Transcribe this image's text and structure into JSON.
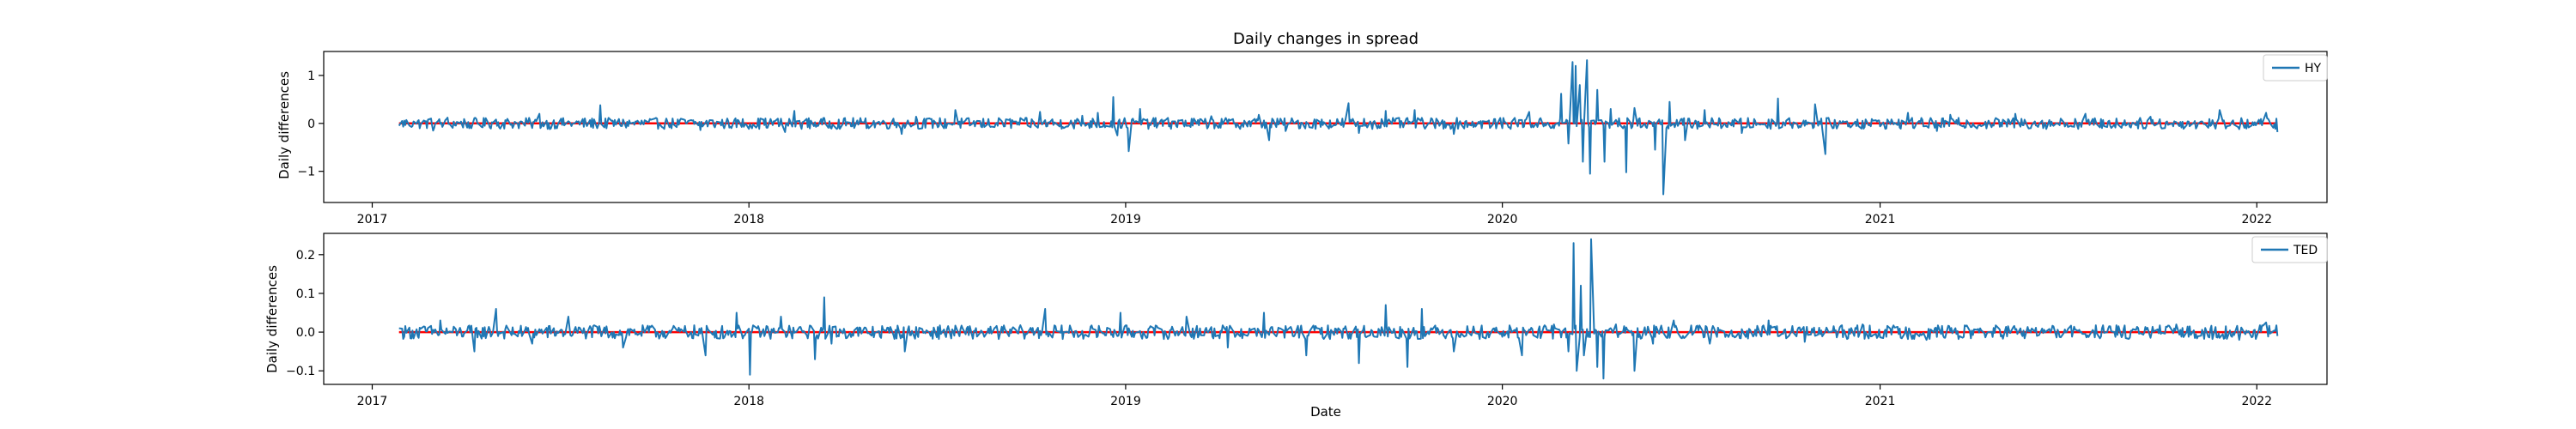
{
  "figure": {
    "title": "Daily changes in spread"
  },
  "chart_data": [
    {
      "type": "line",
      "ylabel": "Daily differences",
      "xlabel": "",
      "x_range": [
        "2016-11-15",
        "2022-03-10"
      ],
      "ylim": [
        -1.65,
        1.5
      ],
      "x_ticks": [
        "2017",
        "2018",
        "2019",
        "2020",
        "2021",
        "2022"
      ],
      "y_ticks": [
        -1,
        0,
        1
      ],
      "legend_position": "top-right",
      "grid": false,
      "series": [
        {
          "name": "HY",
          "color": "#1f77b4",
          "points": [
            [
              "2017-01-27",
              -0.05
            ],
            [
              "2017-02-10",
              0.04
            ],
            [
              "2017-03-01",
              -0.15
            ],
            [
              "2017-03-15",
              0.12
            ],
            [
              "2017-04-05",
              -0.1
            ],
            [
              "2017-05-01",
              0.08
            ],
            [
              "2017-06-12",
              0.2
            ],
            [
              "2017-06-22",
              -0.12
            ],
            [
              "2017-08-10",
              0.38
            ],
            [
              "2017-08-20",
              -0.18
            ],
            [
              "2017-10-01",
              0.06
            ],
            [
              "2017-11-15",
              -0.14
            ],
            [
              "2018-01-15",
              0.08
            ],
            [
              "2018-02-05",
              -0.18
            ],
            [
              "2018-02-14",
              0.26
            ],
            [
              "2018-03-25",
              -0.16
            ],
            [
              "2018-05-29",
              -0.22
            ],
            [
              "2018-06-12",
              0.14
            ],
            [
              "2018-07-20",
              0.28
            ],
            [
              "2018-08-15",
              -0.08
            ],
            [
              "2018-10-10",
              0.24
            ],
            [
              "2018-11-20",
              0.16
            ],
            [
              "2018-12-05",
              0.22
            ],
            [
              "2018-12-20",
              0.55
            ],
            [
              "2018-12-24",
              -0.25
            ],
            [
              "2019-01-04",
              -0.58
            ],
            [
              "2019-01-15",
              0.3
            ],
            [
              "2019-02-10",
              0.08
            ],
            [
              "2019-03-25",
              0.15
            ],
            [
              "2019-05-10",
              0.18
            ],
            [
              "2019-05-20",
              -0.35
            ],
            [
              "2019-06-05",
              -0.16
            ],
            [
              "2019-08-05",
              0.42
            ],
            [
              "2019-08-15",
              -0.2
            ],
            [
              "2019-09-10",
              0.26
            ],
            [
              "2019-10-08",
              0.28
            ],
            [
              "2019-11-15",
              -0.22
            ],
            [
              "2019-12-15",
              0.18
            ],
            [
              "2020-01-27",
              0.24
            ],
            [
              "2020-02-20",
              -0.1
            ],
            [
              "2020-02-27",
              0.62
            ],
            [
              "2020-03-05",
              -0.42
            ],
            [
              "2020-03-09",
              1.28
            ],
            [
              "2020-03-12",
              1.2
            ],
            [
              "2020-03-16",
              0.8
            ],
            [
              "2020-03-19",
              -0.8
            ],
            [
              "2020-03-23",
              1.32
            ],
            [
              "2020-03-26",
              -1.05
            ],
            [
              "2020-04-02",
              0.7
            ],
            [
              "2020-04-09",
              -0.8
            ],
            [
              "2020-04-15",
              0.3
            ],
            [
              "2020-04-30",
              -1.02
            ],
            [
              "2020-05-08",
              0.32
            ],
            [
              "2020-05-28",
              -0.55
            ],
            [
              "2020-06-05",
              -1.48
            ],
            [
              "2020-06-11",
              0.45
            ],
            [
              "2020-06-26",
              -0.35
            ],
            [
              "2020-07-15",
              0.28
            ],
            [
              "2020-08-20",
              -0.2
            ],
            [
              "2020-09-24",
              0.52
            ],
            [
              "2020-10-10",
              -0.18
            ],
            [
              "2020-10-30",
              0.4
            ],
            [
              "2020-11-09",
              -0.64
            ],
            [
              "2020-12-10",
              0.08
            ],
            [
              "2021-01-28",
              0.22
            ],
            [
              "2021-02-25",
              -0.16
            ],
            [
              "2021-03-10",
              0.18
            ],
            [
              "2021-05-12",
              0.2
            ],
            [
              "2021-07-19",
              0.2
            ],
            [
              "2021-09-20",
              0.14
            ],
            [
              "2021-10-12",
              -0.06
            ],
            [
              "2021-11-26",
              0.28
            ],
            [
              "2021-12-15",
              -0.12
            ],
            [
              "2022-01-10",
              0.22
            ],
            [
              "2022-01-21",
              -0.18
            ]
          ]
        }
      ],
      "reference_lines": [
        {
          "y": 0,
          "color": "#ff0000",
          "from": "2017-01-27",
          "to": "2022-01-21"
        }
      ]
    },
    {
      "type": "line",
      "ylabel": "Daily differences",
      "xlabel": "Date",
      "x_range": [
        "2016-11-15",
        "2022-03-10"
      ],
      "ylim": [
        -0.135,
        0.255
      ],
      "x_ticks": [
        "2017",
        "2018",
        "2019",
        "2020",
        "2021",
        "2022"
      ],
      "y_ticks": [
        -0.1,
        0.0,
        0.1,
        0.2
      ],
      "legend_position": "top-right",
      "grid": false,
      "series": [
        {
          "name": "TED",
          "color": "#1f77b4",
          "points": [
            [
              "2017-01-27",
              0.01
            ],
            [
              "2017-02-15",
              -0.015
            ],
            [
              "2017-03-08",
              0.03
            ],
            [
              "2017-04-10",
              -0.05
            ],
            [
              "2017-05-01",
              0.06
            ],
            [
              "2017-06-05",
              -0.03
            ],
            [
              "2017-07-10",
              0.04
            ],
            [
              "2017-09-01",
              -0.04
            ],
            [
              "2017-10-15",
              0.05
            ],
            [
              "2017-11-20",
              -0.06
            ],
            [
              "2017-12-20",
              0.05
            ],
            [
              "2018-01-02",
              -0.11
            ],
            [
              "2018-02-01",
              0.04
            ],
            [
              "2018-03-06",
              -0.07
            ],
            [
              "2018-03-15",
              0.09
            ],
            [
              "2018-03-22",
              -0.03
            ],
            [
              "2018-04-15",
              0.07
            ],
            [
              "2018-06-01",
              -0.05
            ],
            [
              "2018-07-15",
              0.05
            ],
            [
              "2018-09-01",
              -0.06
            ],
            [
              "2018-10-15",
              0.06
            ],
            [
              "2018-12-01",
              -0.05
            ],
            [
              "2018-12-27",
              0.05
            ],
            [
              "2019-01-20",
              -0.05
            ],
            [
              "2019-03-01",
              0.04
            ],
            [
              "2019-04-10",
              -0.04
            ],
            [
              "2019-05-15",
              0.05
            ],
            [
              "2019-06-25",
              -0.06
            ],
            [
              "2019-07-20",
              0.07
            ],
            [
              "2019-08-15",
              -0.08
            ],
            [
              "2019-09-10",
              0.07
            ],
            [
              "2019-10-01",
              -0.09
            ],
            [
              "2019-10-15",
              0.06
            ],
            [
              "2019-11-15",
              -0.05
            ],
            [
              "2019-12-15",
              0.04
            ],
            [
              "2020-01-20",
              -0.06
            ],
            [
              "2020-02-20",
              0.02
            ],
            [
              "2020-03-05",
              -0.05
            ],
            [
              "2020-03-10",
              0.23
            ],
            [
              "2020-03-13",
              -0.1
            ],
            [
              "2020-03-17",
              0.12
            ],
            [
              "2020-03-20",
              -0.06
            ],
            [
              "2020-03-27",
              0.24
            ],
            [
              "2020-04-02",
              -0.09
            ],
            [
              "2020-04-08",
              -0.12
            ],
            [
              "2020-04-20",
              0.02
            ],
            [
              "2020-05-08",
              -0.1
            ],
            [
              "2020-05-26",
              -0.03
            ],
            [
              "2020-06-15",
              0.03
            ],
            [
              "2020-07-20",
              -0.03
            ],
            [
              "2020-09-15",
              0.03
            ],
            [
              "2020-10-20",
              -0.025
            ],
            [
              "2020-12-15",
              0.02
            ],
            [
              "2021-02-15",
              -0.02
            ],
            [
              "2021-05-15",
              0.025
            ],
            [
              "2021-08-15",
              -0.02
            ],
            [
              "2021-10-15",
              0.02
            ],
            [
              "2021-12-15",
              -0.02
            ],
            [
              "2022-01-10",
              0.025
            ],
            [
              "2022-01-21",
              -0.01
            ]
          ]
        }
      ],
      "reference_lines": [
        {
          "y": 0,
          "color": "#ff0000",
          "from": "2017-01-27",
          "to": "2022-01-21"
        }
      ]
    }
  ]
}
